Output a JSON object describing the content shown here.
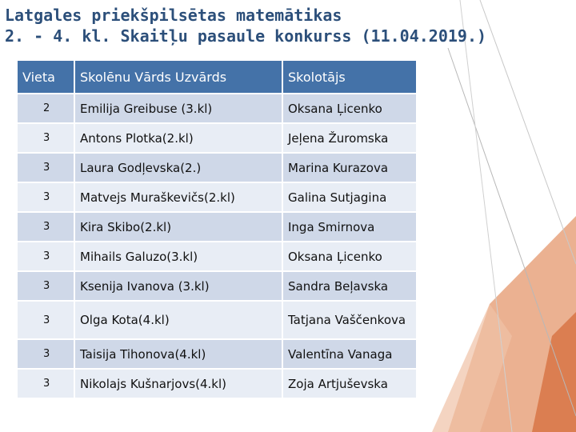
{
  "title": {
    "line1": "Latgales priekšpilsētas matemātikas",
    "line2": "2. - 4. kl. Skaitļu pasaule konkurss (11.04.2019.)"
  },
  "table": {
    "headers": [
      "Vieta",
      "Skolēnu  Vārds Uzvārds",
      "Skolotājs"
    ],
    "rows": [
      {
        "place": "2",
        "student": "Emilija Greibuse (3.kl)",
        "teacher": "Oksana Ļicenko"
      },
      {
        "place": "3",
        "student": " Antons Plotka(2.kl)",
        "teacher": "Jeļena Žuromska"
      },
      {
        "place": "3",
        "student": "Laura Godļevska(2.)",
        "teacher": "Marina Kurazova"
      },
      {
        "place": "3",
        "student": "Matvejs Muraškevičs(2.kl)",
        "teacher": "Galina Sutjagina"
      },
      {
        "place": "3",
        "student": "Kira Skibo(2.kl)",
        "teacher": "Inga Smirnova"
      },
      {
        "place": "3",
        "student": "Mihails Galuzo(3.kl)",
        "teacher": "Oksana Ļicenko"
      },
      {
        "place": "3",
        "student": "Ksenija Ivanova (3.kl)",
        "teacher": "Sandra Beļavska"
      },
      {
        "place": "3",
        "student": "Olga Kota(4.kl)",
        "teacher": "Tatjana Vaščenkova"
      },
      {
        "place": "3",
        "student": "Taisija Tihonova(4.kl)",
        "teacher": "Valentīna Vanaga"
      },
      {
        "place": "3",
        "student": "Nikolajs Kušnarjovs(4.kl)",
        "teacher": "Zoja Artjuševska"
      }
    ]
  },
  "colors": {
    "title": "#2c4f7a",
    "header_bg": "#4472a8",
    "row_dark": "#cfd8e8",
    "row_light": "#e8edf5",
    "decor_orange": "#e8a37e",
    "decor_orange_dark": "#d9794a"
  }
}
